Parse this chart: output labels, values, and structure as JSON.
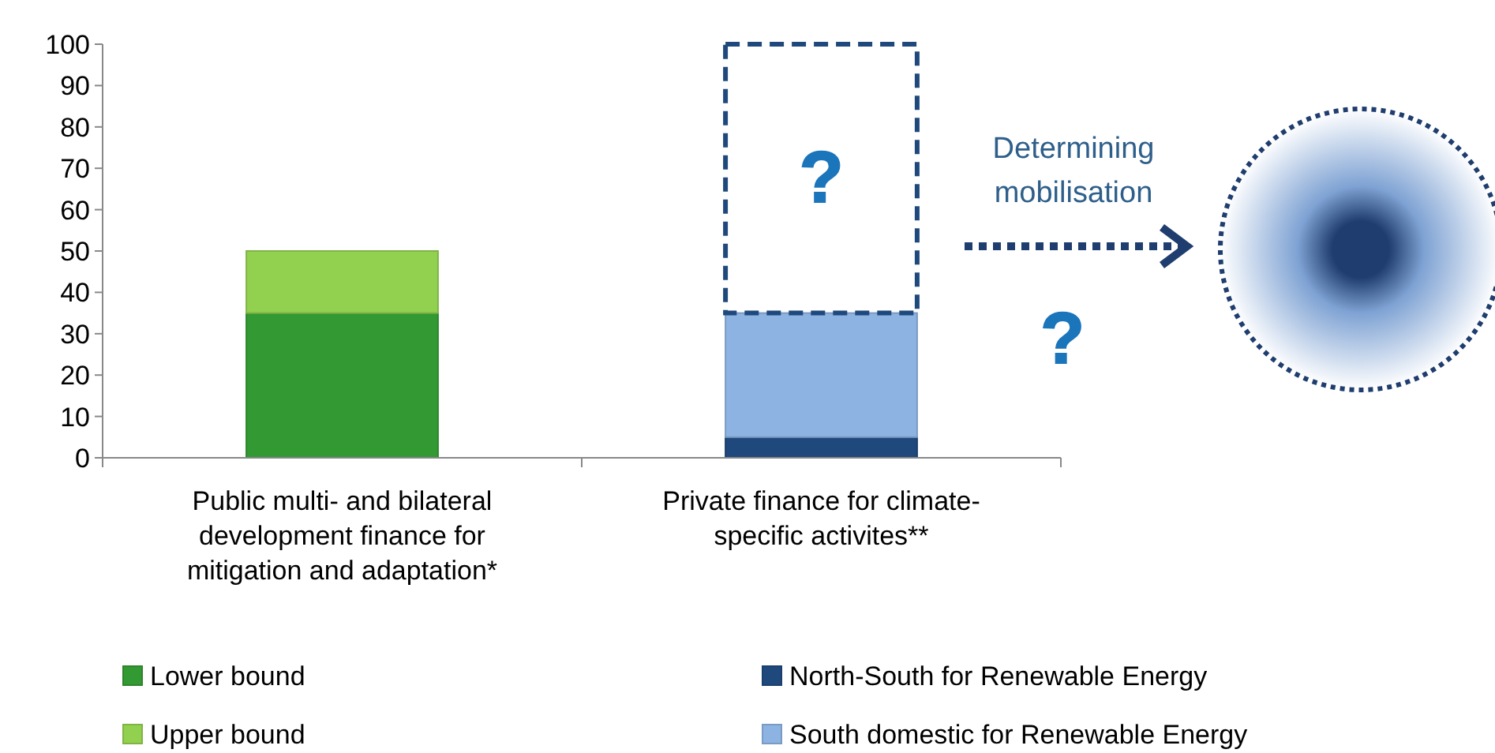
{
  "chart_data": {
    "type": "bar",
    "stacked": true,
    "categories": [
      "Public multi- and bilateral development finance for mitigation and adaptation*",
      "Private finance for climate-specific activites**"
    ],
    "series": [
      {
        "name": "Lower bound",
        "color": "#339933",
        "values": [
          35,
          null
        ]
      },
      {
        "name": "Upper bound",
        "color": "#92d050",
        "values": [
          15,
          null
        ]
      },
      {
        "name": "North-South for Renewable Energy",
        "color": "#1f497d",
        "values": [
          null,
          5
        ]
      },
      {
        "name": "South domestic for Renewable Energy",
        "color": "#8db3e2",
        "values": [
          null,
          30
        ]
      },
      {
        "color": "#1f497d",
        "line_style": "dashed",
        "values": [
          null,
          65
        ]
      }
    ],
    "ylim": [
      0,
      100
    ],
    "yticks": [
      0,
      10,
      20,
      30,
      40,
      50,
      60,
      70,
      80,
      90,
      100
    ],
    "grid": false,
    "legend": "bottom",
    "annotations": [
      "?",
      "Determining mobilisation",
      "?"
    ]
  }
}
